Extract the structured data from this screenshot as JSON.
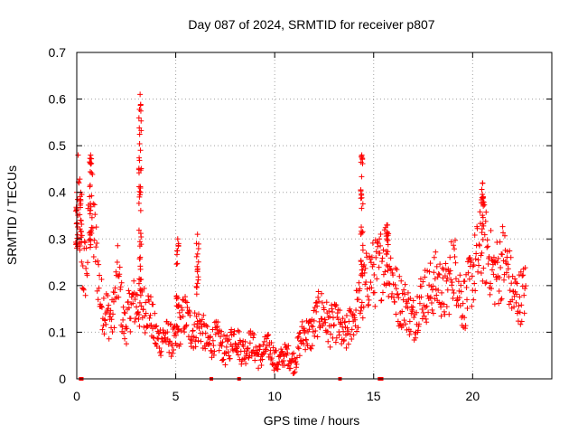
{
  "chart_data": {
    "type": "scatter",
    "title": "Day 087 of 2024, SRMTID for receiver p807",
    "xlabel": "GPS time / hours",
    "ylabel": "SRMTID / TECUs",
    "xlim": [
      0,
      24
    ],
    "ylim": [
      0,
      0.7
    ],
    "xticks": [
      0,
      5,
      10,
      15,
      20
    ],
    "yticks": [
      0,
      0.1,
      0.2,
      0.3,
      0.4,
      0.5,
      0.6,
      0.7
    ],
    "grid": true,
    "marker": "plus",
    "series_color": "#ff0000",
    "trend": [
      [
        0.0,
        0.33
      ],
      [
        0.1,
        0.38
      ],
      [
        0.3,
        0.22
      ],
      [
        0.5,
        0.25
      ],
      [
        0.7,
        0.38
      ],
      [
        0.9,
        0.3
      ],
      [
        1.2,
        0.16
      ],
      [
        1.5,
        0.16
      ],
      [
        1.8,
        0.12
      ],
      [
        2.1,
        0.22
      ],
      [
        2.4,
        0.12
      ],
      [
        2.8,
        0.15
      ],
      [
        3.2,
        0.17
      ],
      [
        3.6,
        0.14
      ],
      [
        4.0,
        0.1
      ],
      [
        4.5,
        0.08
      ],
      [
        5.0,
        0.09
      ],
      [
        5.5,
        0.13
      ],
      [
        6.0,
        0.11
      ],
      [
        6.5,
        0.09
      ],
      [
        7.0,
        0.08
      ],
      [
        7.5,
        0.07
      ],
      [
        8.0,
        0.08
      ],
      [
        8.5,
        0.07
      ],
      [
        9.0,
        0.06
      ],
      [
        9.5,
        0.06
      ],
      [
        10.0,
        0.05
      ],
      [
        10.5,
        0.04
      ],
      [
        11.0,
        0.05
      ],
      [
        11.5,
        0.09
      ],
      [
        12.0,
        0.12
      ],
      [
        12.5,
        0.14
      ],
      [
        13.0,
        0.11
      ],
      [
        13.5,
        0.1
      ],
      [
        14.0,
        0.12
      ],
      [
        14.5,
        0.2
      ],
      [
        15.0,
        0.22
      ],
      [
        15.5,
        0.27
      ],
      [
        16.0,
        0.21
      ],
      [
        16.5,
        0.15
      ],
      [
        17.0,
        0.14
      ],
      [
        17.5,
        0.17
      ],
      [
        18.0,
        0.21
      ],
      [
        18.5,
        0.18
      ],
      [
        19.0,
        0.24
      ],
      [
        19.5,
        0.17
      ],
      [
        20.0,
        0.21
      ],
      [
        20.5,
        0.31
      ],
      [
        21.0,
        0.22
      ],
      [
        21.5,
        0.26
      ],
      [
        22.0,
        0.19
      ],
      [
        22.5,
        0.17
      ],
      [
        22.7,
        0.18
      ]
    ],
    "spikes": [
      {
        "x": 0.0,
        "ymin": 0.28,
        "ymax": 0.4
      },
      {
        "x": 0.2,
        "ymin": 0.25,
        "ymax": 0.4
      },
      {
        "x": 0.7,
        "ymin": 0.28,
        "ymax": 0.48
      },
      {
        "x": 3.2,
        "ymin": 0.18,
        "ymax": 0.61
      },
      {
        "x": 5.1,
        "ymin": 0.15,
        "ymax": 0.3
      },
      {
        "x": 6.1,
        "ymin": 0.18,
        "ymax": 0.31
      },
      {
        "x": 14.4,
        "ymin": 0.2,
        "ymax": 0.48
      },
      {
        "x": 15.7,
        "ymin": 0.22,
        "ymax": 0.33
      },
      {
        "x": 20.5,
        "ymin": 0.28,
        "ymax": 0.42
      }
    ],
    "zero_points": [
      0.2,
      0.25,
      6.8,
      8.2,
      13.3,
      15.3,
      15.4
    ]
  }
}
